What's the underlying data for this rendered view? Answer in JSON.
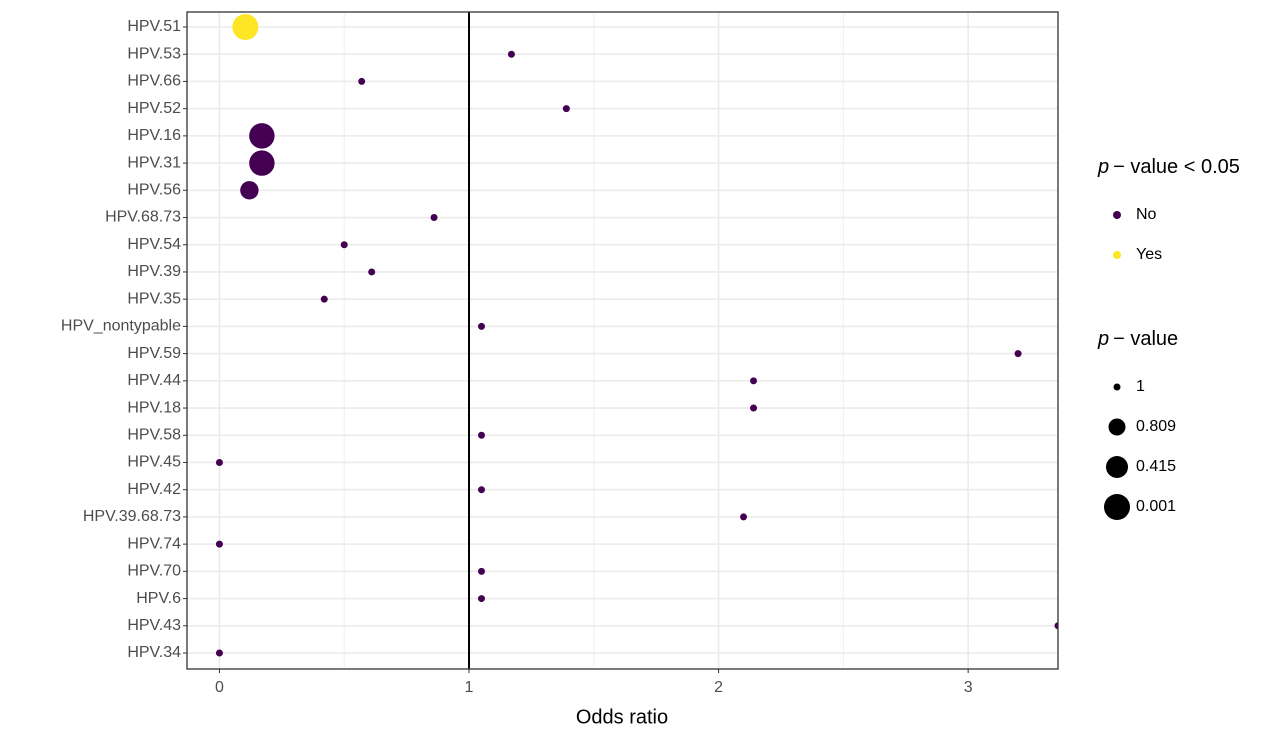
{
  "chart_data": {
    "type": "dot",
    "x_label": "Odds ratio",
    "categories": [
      "HPV.51",
      "HPV.53",
      "HPV.66",
      "HPV.52",
      "HPV.16",
      "HPV.31",
      "HPV.56",
      "HPV.68.73",
      "HPV.54",
      "HPV.39",
      "HPV.35",
      "HPV_nontypable",
      "HPV.59",
      "HPV.44",
      "HPV.18",
      "HPV.58",
      "HPV.45",
      "HPV.42",
      "HPV.39.68.73",
      "HPV.74",
      "HPV.70",
      "HPV.6",
      "HPV.43",
      "HPV.34"
    ],
    "values": [
      0.104,
      1.17,
      0.57,
      1.39,
      0.17,
      0.17,
      0.12,
      0.86,
      0.5,
      0.61,
      0.42,
      1.05,
      3.2,
      2.14,
      2.14,
      1.05,
      0,
      1.05,
      2.1,
      0,
      1.05,
      1.05,
      3.36,
      0
    ],
    "p_values": [
      0.0001,
      1,
      1,
      1,
      0.06,
      0.06,
      0.7,
      1,
      1,
      1,
      1,
      1,
      1,
      1,
      1,
      1,
      1,
      1,
      1,
      1,
      1,
      1,
      1,
      1
    ],
    "groups": [
      "Yes",
      "No",
      "No",
      "No",
      "No",
      "No",
      "No",
      "No",
      "No",
      "No",
      "No",
      "No",
      "No",
      "No",
      "No",
      "No",
      "No",
      "No",
      "No",
      "No",
      "No",
      "No",
      "No",
      "No"
    ],
    "color_legend": {
      "symbol": "p",
      "text": "− value < 0.05",
      "items": [
        {
          "name": "No",
          "color": "#440154"
        },
        {
          "name": "Yes",
          "color": "#fde725"
        }
      ]
    },
    "size_legend": {
      "symbol": "p",
      "text": "− value",
      "values": [
        1,
        0.809,
        0.415,
        0.001
      ]
    },
    "xlim": [
      -0.13,
      3.36
    ],
    "xticks": [
      0,
      1,
      2,
      3
    ],
    "minor_xticks": [
      0.5,
      1.5,
      2.5
    ],
    "reference_line": 1,
    "grid": true
  }
}
